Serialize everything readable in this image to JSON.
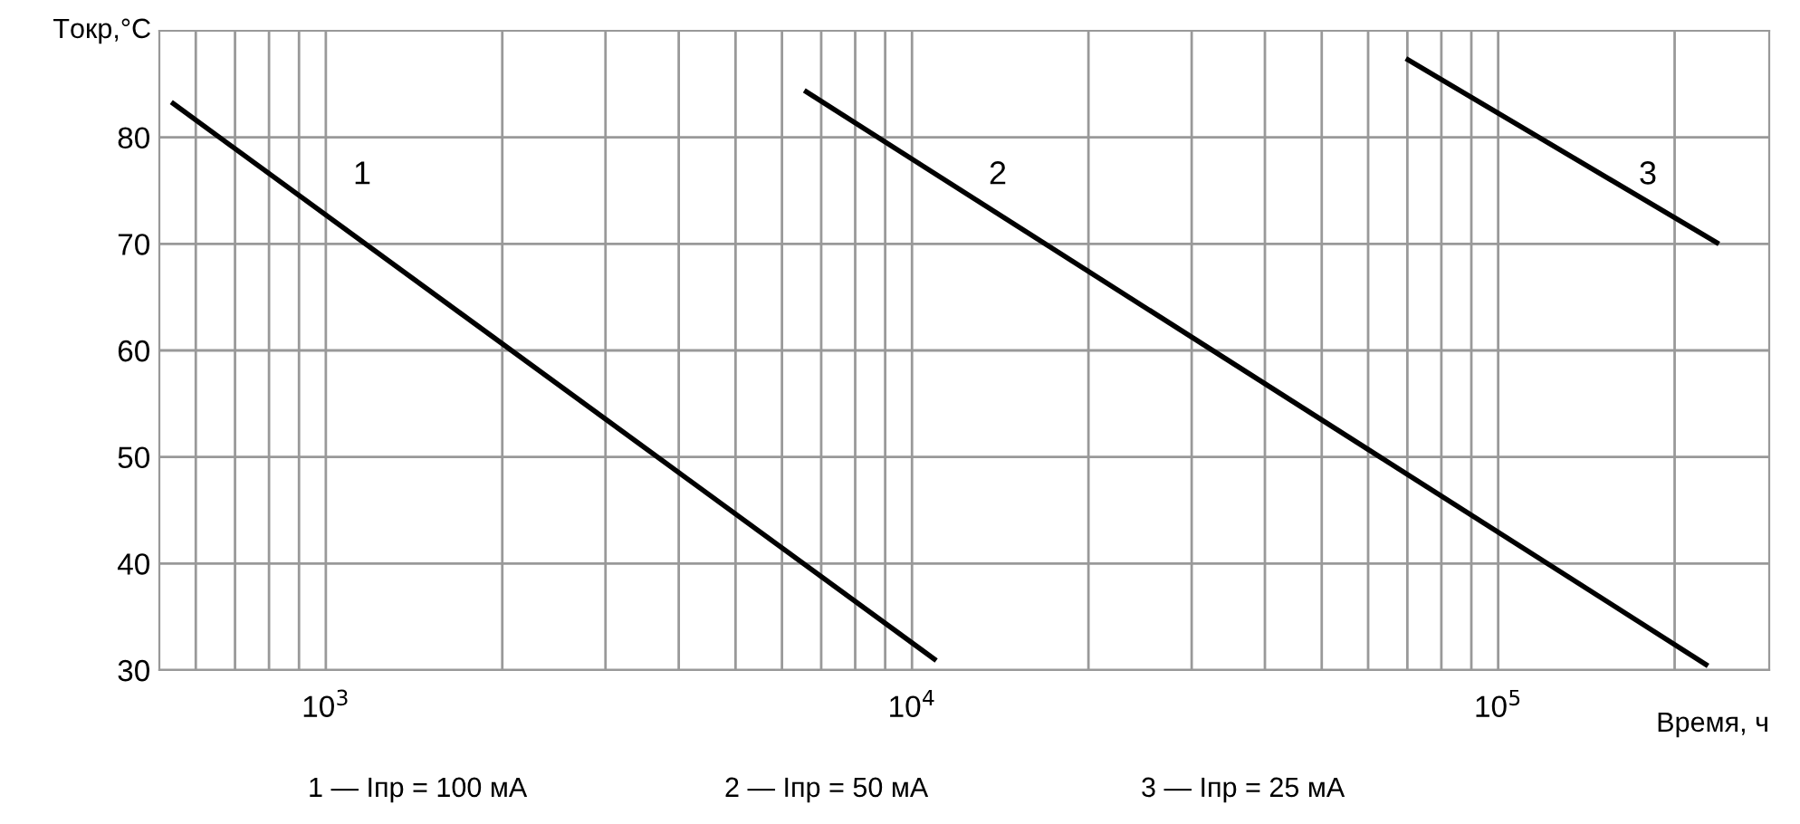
{
  "chart_data": {
    "type": "line",
    "xlabel": "Время, ч",
    "ylabel": "Tокр,°C",
    "log": "x",
    "grid": true,
    "marker": "none",
    "line_style": "solid",
    "xlim": [
      520,
      290000
    ],
    "ylim": [
      30,
      90
    ],
    "xticks": [
      {
        "value": 600,
        "label": null
      },
      {
        "value": 700,
        "label": null
      },
      {
        "value": 800,
        "label": null
      },
      {
        "value": 900,
        "label": null
      },
      {
        "value": 1000,
        "label": "10$^{3}$"
      },
      {
        "value": 2000,
        "label": null
      },
      {
        "value": 3000,
        "label": null
      },
      {
        "value": 4000,
        "label": null
      },
      {
        "value": 5000,
        "label": null
      },
      {
        "value": 6000,
        "label": null
      },
      {
        "value": 7000,
        "label": null
      },
      {
        "value": 8000,
        "label": null
      },
      {
        "value": 9000,
        "label": null
      },
      {
        "value": 10000,
        "label": "10$^{4}$"
      },
      {
        "value": 20000,
        "label": null
      },
      {
        "value": 30000,
        "label": null
      },
      {
        "value": 40000,
        "label": null
      },
      {
        "value": 50000,
        "label": null
      },
      {
        "value": 60000,
        "label": null
      },
      {
        "value": 70000,
        "label": null
      },
      {
        "value": 80000,
        "label": null
      },
      {
        "value": 90000,
        "label": null
      },
      {
        "value": 100000,
        "label": "10$^{5}$"
      },
      {
        "value": 200000,
        "label": null
      }
    ],
    "yticks": [
      30,
      40,
      50,
      60,
      70,
      80
    ],
    "series": [
      {
        "color": "#000000",
        "x": [
          545,
          11000
        ],
        "values": [
          83.3,
          30.9
        ]
      },
      {
        "color": "#000000",
        "x": [
          6550,
          228000
        ],
        "values": [
          84.4,
          30.4
        ]
      },
      {
        "color": "#000000",
        "x": [
          69600,
          238000
        ],
        "values": [
          87.4,
          70
        ]
      }
    ],
    "annotations": [
      "1",
      "2",
      "3",
      "1 — Iпр = 100 мА",
      "2 — Iпр = 50 мА",
      "3 — Iпр = 25 мА"
    ]
  }
}
